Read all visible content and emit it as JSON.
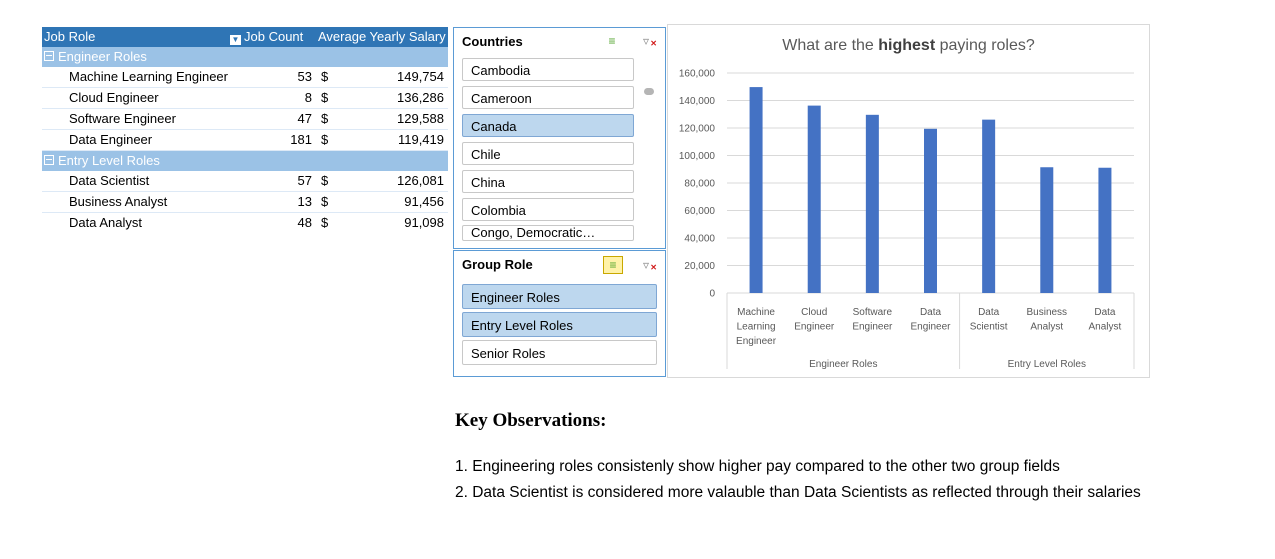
{
  "pivot": {
    "headers": {
      "role": "Job Role",
      "count": "Job Count",
      "salary": "Average Yearly Salary"
    },
    "currency": "$",
    "groups": [
      {
        "name": "Engineer Roles",
        "rows": [
          {
            "role": "Machine Learning Engineer",
            "count": "53",
            "salary": "149,754"
          },
          {
            "role": "Cloud Engineer",
            "count": "8",
            "salary": "136,286"
          },
          {
            "role": "Software Engineer",
            "count": "47",
            "salary": "129,588"
          },
          {
            "role": "Data Engineer",
            "count": "181",
            "salary": "119,419"
          }
        ]
      },
      {
        "name": "Entry Level Roles",
        "rows": [
          {
            "role": "Data Scientist",
            "count": "57",
            "salary": "126,081"
          },
          {
            "role": "Business Analyst",
            "count": "13",
            "salary": "91,456"
          },
          {
            "role": "Data Analyst",
            "count": "48",
            "salary": "91,098"
          }
        ]
      }
    ]
  },
  "countries_slicer": {
    "title": "Countries",
    "items": [
      {
        "label": "Cambodia",
        "selected": false
      },
      {
        "label": "Cameroon",
        "selected": false
      },
      {
        "label": "Canada",
        "selected": true
      },
      {
        "label": "Chile",
        "selected": false
      },
      {
        "label": "China",
        "selected": false
      },
      {
        "label": "Colombia",
        "selected": false
      },
      {
        "label": "Congo, Democratic…",
        "selected": false
      }
    ]
  },
  "group_slicer": {
    "title": "Group Role",
    "items": [
      {
        "label": "Engineer Roles",
        "selected": true
      },
      {
        "label": "Entry Level Roles",
        "selected": true
      },
      {
        "label": "Senior Roles",
        "selected": false
      }
    ]
  },
  "chart_data": {
    "type": "bar",
    "title_parts": {
      "before": "What are the ",
      "bold": "highest",
      "after": " paying roles?"
    },
    "categories": [
      [
        "Machine",
        "Learning",
        "Engineer"
      ],
      [
        "Cloud",
        "Engineer"
      ],
      [
        "Software",
        "Engineer"
      ],
      [
        "Data",
        "Engineer"
      ],
      [
        "Data",
        "Scientist"
      ],
      [
        "Business",
        "Analyst"
      ],
      [
        "Data",
        "Analyst"
      ]
    ],
    "groups": [
      {
        "name": "Engineer Roles",
        "count": 4
      },
      {
        "name": "Entry Level Roles",
        "count": 3
      }
    ],
    "values": [
      149754,
      136286,
      129588,
      119419,
      126081,
      91456,
      91098
    ],
    "ylim": [
      0,
      160000
    ],
    "yticks": [
      "0",
      "20,000",
      "40,000",
      "60,000",
      "80,000",
      "100,000",
      "120,000",
      "140,000",
      "160,000"
    ],
    "bar_color": "#4472c4",
    "grid": true
  },
  "observations": {
    "heading": "Key Observations:",
    "lines": [
      "1. Engineering roles consistenly show higher pay compared to the other two group fields",
      "2. Data Scientist is considered more valauble than Data Scientists as reflected through their salaries"
    ]
  }
}
